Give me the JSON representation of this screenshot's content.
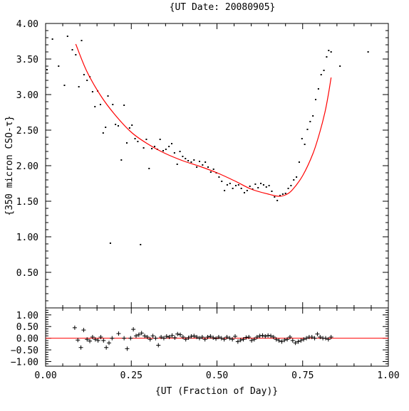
{
  "chart_data": [
    {
      "type": "scatter",
      "title": "{UT Date: 20080905}",
      "xlabel": "",
      "ylabel": "{350 micron CSO-τ}",
      "xlim": [
        0.0,
        1.0
      ],
      "ylim": [
        0.0,
        4.0
      ],
      "yticks": [
        0.5,
        1.0,
        1.5,
        2.0,
        2.5,
        3.0,
        3.5,
        4.0
      ],
      "ytick_labels": [
        "0.50",
        "1.00",
        "1.50",
        "2.00",
        "2.50",
        "3.00",
        "3.50",
        "4.00"
      ],
      "fit_color": "#ff0000",
      "points_color": "#000000",
      "series": [
        {
          "x": [
            0.004,
            0.02,
            0.038,
            0.055,
            0.064,
            0.078,
            0.088,
            0.097,
            0.105,
            0.112,
            0.121,
            0.129,
            0.137,
            0.144,
            0.152,
            0.16,
            0.168,
            0.175,
            0.182,
            0.189,
            0.196,
            0.204,
            0.212,
            0.221,
            0.229,
            0.237,
            0.245,
            0.252,
            0.261,
            0.269,
            0.277,
            0.286,
            0.294,
            0.302,
            0.31,
            0.318,
            0.326,
            0.334,
            0.343,
            0.351,
            0.36,
            0.368,
            0.376,
            0.384,
            0.392,
            0.4,
            0.408,
            0.416,
            0.425,
            0.433,
            0.441,
            0.449,
            0.458,
            0.466,
            0.474,
            0.482,
            0.49,
            0.498,
            0.506,
            0.514,
            0.522,
            0.53,
            0.538,
            0.546,
            0.555,
            0.563,
            0.571,
            0.58,
            0.588,
            0.596,
            0.604,
            0.612,
            0.62,
            0.628,
            0.636,
            0.644,
            0.652,
            0.66,
            0.668,
            0.676,
            0.684,
            0.692,
            0.7,
            0.708,
            0.716,
            0.724,
            0.732,
            0.74,
            0.748,
            0.756,
            0.764,
            0.772,
            0.78,
            0.788,
            0.796,
            0.804,
            0.812,
            0.82,
            0.826,
            0.833,
            0.859,
            0.941
          ],
          "y": [
            3.35,
            3.78,
            3.4,
            3.13,
            3.82,
            3.63,
            3.56,
            3.11,
            3.76,
            3.28,
            3.2,
            3.25,
            3.04,
            2.83,
            3.05,
            2.86,
            2.46,
            2.54,
            2.98,
            0.91,
            2.86,
            2.58,
            2.56,
            2.08,
            2.85,
            2.32,
            2.53,
            2.57,
            2.38,
            2.34,
            0.89,
            2.25,
            2.37,
            1.96,
            2.24,
            2.27,
            2.23,
            2.37,
            2.21,
            2.23,
            2.27,
            2.31,
            2.18,
            2.02,
            2.2,
            2.13,
            2.1,
            2.07,
            2.05,
            2.08,
            1.98,
            2.06,
            2.01,
            2.05,
            1.98,
            1.91,
            1.95,
            1.9,
            1.84,
            1.78,
            1.65,
            1.73,
            1.75,
            1.68,
            1.72,
            1.73,
            1.68,
            1.62,
            1.65,
            1.71,
            1.67,
            1.74,
            1.69,
            1.75,
            1.73,
            1.7,
            1.72,
            1.64,
            1.56,
            1.51,
            1.58,
            1.6,
            1.61,
            1.68,
            1.72,
            1.8,
            1.84,
            2.05,
            2.38,
            2.3,
            2.51,
            2.62,
            2.7,
            2.93,
            3.08,
            3.28,
            3.34,
            3.53,
            3.62,
            3.6,
            3.4,
            3.6
          ]
        }
      ],
      "fit": {
        "x": [
          0.088,
          0.12,
          0.16,
          0.2,
          0.25,
          0.3,
          0.35,
          0.4,
          0.45,
          0.5,
          0.55,
          0.6,
          0.65,
          0.68,
          0.7,
          0.72,
          0.75,
          0.78,
          0.8,
          0.815,
          0.825,
          0.833
        ],
        "y": [
          3.71,
          3.33,
          2.99,
          2.73,
          2.47,
          2.3,
          2.17,
          2.07,
          1.99,
          1.9,
          1.79,
          1.67,
          1.6,
          1.57,
          1.59,
          1.66,
          1.86,
          2.17,
          2.47,
          2.75,
          3.0,
          3.24
        ]
      }
    },
    {
      "type": "scatter",
      "title": "",
      "xlabel": "{UT (Fraction of Day)}",
      "ylabel": "",
      "xlim": [
        0.0,
        1.0
      ],
      "ylim": [
        -1.2,
        1.3
      ],
      "xticks": [
        0.0,
        0.25,
        0.5,
        0.75,
        1.0
      ],
      "xtick_labels": [
        "0.00",
        "0.25",
        "0.50",
        "0.75",
        "1.00"
      ],
      "yticks": [
        -1.0,
        -0.5,
        0.0,
        0.5,
        1.0
      ],
      "ytick_labels": [
        "−1.00",
        "−0.50",
        "0.00",
        "0.50",
        "1.00"
      ],
      "zero_line_color": "#ff0000",
      "series": [
        {
          "x": [
            0.085,
            0.094,
            0.103,
            0.111,
            0.121,
            0.129,
            0.137,
            0.145,
            0.153,
            0.161,
            0.169,
            0.177,
            0.185,
            0.194,
            0.213,
            0.229,
            0.238,
            0.248,
            0.256,
            0.264,
            0.272,
            0.28,
            0.289,
            0.297,
            0.305,
            0.313,
            0.321,
            0.329,
            0.337,
            0.345,
            0.353,
            0.361,
            0.369,
            0.377,
            0.385,
            0.393,
            0.401,
            0.409,
            0.417,
            0.425,
            0.433,
            0.441,
            0.449,
            0.457,
            0.465,
            0.473,
            0.481,
            0.489,
            0.497,
            0.505,
            0.513,
            0.521,
            0.529,
            0.537,
            0.545,
            0.553,
            0.561,
            0.569,
            0.577,
            0.585,
            0.593,
            0.601,
            0.609,
            0.617,
            0.625,
            0.633,
            0.641,
            0.649,
            0.657,
            0.665,
            0.673,
            0.681,
            0.689,
            0.697,
            0.705,
            0.713,
            0.721,
            0.729,
            0.737,
            0.745,
            0.753,
            0.761,
            0.769,
            0.777,
            0.785,
            0.793,
            0.801,
            0.809,
            0.817,
            0.825,
            0.833
          ],
          "y": [
            0.45,
            -0.08,
            -0.4,
            0.35,
            -0.05,
            -0.12,
            0.05,
            -0.05,
            -0.1,
            0.05,
            -0.1,
            -0.4,
            -0.2,
            0.0,
            0.2,
            0.0,
            -0.45,
            0.0,
            0.38,
            0.1,
            0.15,
            0.22,
            0.1,
            0.05,
            -0.05,
            0.1,
            0.0,
            -0.3,
            0.05,
            0.0,
            0.08,
            0.05,
            0.12,
            0.02,
            0.18,
            0.15,
            0.05,
            -0.05,
            0.02,
            0.08,
            0.1,
            0.05,
            0.0,
            0.05,
            -0.05,
            0.05,
            0.08,
            0.02,
            -0.02,
            0.05,
            0.0,
            -0.05,
            0.05,
            0.0,
            -0.05,
            0.08,
            -0.15,
            -0.08,
            -0.05,
            0.03,
            0.05,
            -0.1,
            -0.05,
            0.05,
            0.1,
            0.12,
            0.08,
            0.12,
            0.1,
            0.05,
            -0.05,
            -0.1,
            -0.15,
            -0.08,
            -0.05,
            0.05,
            -0.1,
            -0.2,
            -0.15,
            -0.1,
            -0.05,
            0.0,
            0.05,
            0.05,
            0.0,
            0.18,
            0.05,
            0.0,
            0.0,
            -0.05,
            0.05
          ]
        }
      ]
    }
  ]
}
